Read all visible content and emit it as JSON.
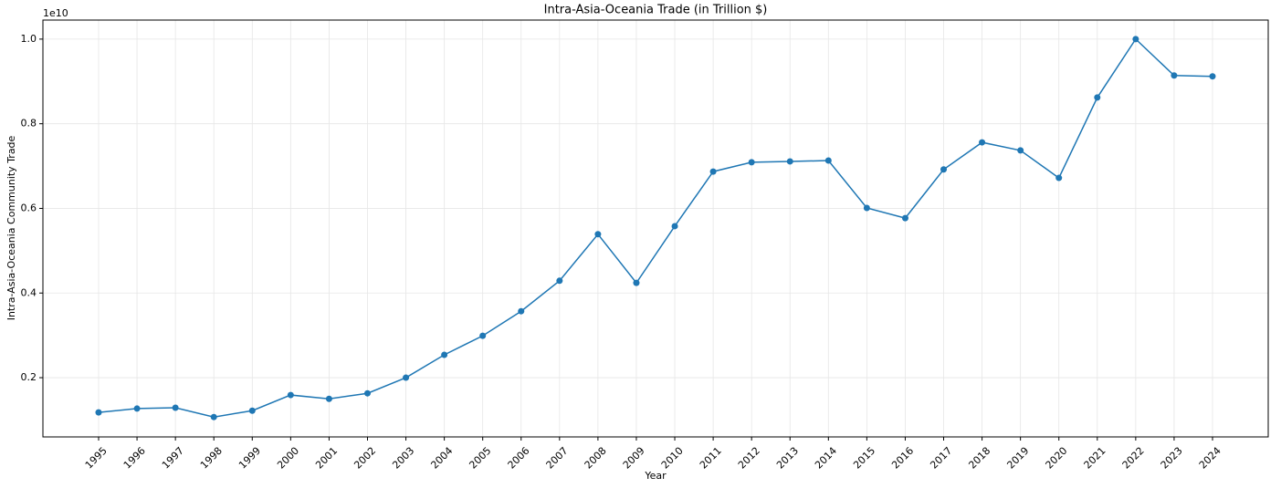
{
  "chart_data": {
    "type": "line",
    "title": "Intra-Asia-Oceania Trade (in Trillion $)",
    "x_label": "Year",
    "y_label": "Intra-Asia-Oceania Community Trade",
    "y_offset_label": "1e10",
    "x": [
      1995,
      1996,
      1997,
      1998,
      1999,
      2000,
      2001,
      2002,
      2003,
      2004,
      2005,
      2006,
      2007,
      2008,
      2009,
      2010,
      2011,
      2012,
      2013,
      2014,
      2015,
      2016,
      2017,
      2018,
      2019,
      2020,
      2021,
      2022,
      2023,
      2024
    ],
    "series": [
      {
        "name": "Intra-Asia-Oceania Community Trade",
        "color": "#1f77b4",
        "values": [
          0.118,
          0.127,
          0.129,
          0.107,
          0.122,
          0.159,
          0.15,
          0.163,
          0.2,
          0.254,
          0.299,
          0.357,
          0.429,
          0.539,
          0.424,
          0.558,
          0.687,
          0.709,
          0.711,
          0.713,
          0.601,
          0.577,
          0.692,
          0.756,
          0.737,
          0.672,
          0.862,
          1.0,
          0.914,
          0.912
        ]
      }
    ],
    "xlim": [
      1993.55,
      2025.45
    ],
    "xticks": [
      1995,
      1996,
      1997,
      1998,
      1999,
      2000,
      2001,
      2002,
      2003,
      2004,
      2005,
      2006,
      2007,
      2008,
      2009,
      2010,
      2011,
      2012,
      2013,
      2014,
      2015,
      2016,
      2017,
      2018,
      2019,
      2020,
      2021,
      2022,
      2023,
      2024
    ],
    "ylim": [
      0.06,
      1.045
    ],
    "yticks": [
      {
        "value": 0.2,
        "label": "0.2"
      },
      {
        "value": 0.4,
        "label": "0.4"
      },
      {
        "value": 0.6,
        "label": "0.6"
      },
      {
        "value": 0.8,
        "label": "0.8"
      },
      {
        "value": 1.0,
        "label": "1.0"
      }
    ],
    "grid": true
  }
}
